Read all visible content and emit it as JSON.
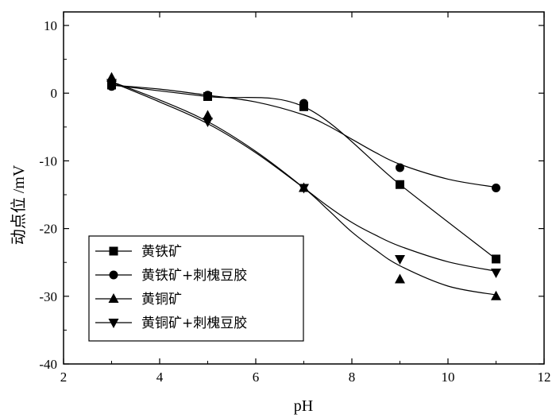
{
  "chart_data": {
    "type": "scatter",
    "xlabel": "pH",
    "ylabel": "动点位 /mV",
    "xlim": [
      2,
      12
    ],
    "ylim": [
      -40,
      12
    ],
    "xticks": [
      2,
      4,
      6,
      8,
      10,
      12
    ],
    "yticks": [
      10,
      0,
      -10,
      -20,
      -30,
      -40
    ],
    "legend_position": "bottom-left",
    "grid": false,
    "series": [
      {
        "name": "黄铁矿",
        "marker": "square",
        "x": [
          3,
          5,
          7,
          9,
          11
        ],
        "y": [
          1.2,
          -0.5,
          -2.0,
          -13.5,
          -24.5
        ],
        "fit": [
          [
            3,
            1.2
          ],
          [
            5,
            -0.5
          ],
          [
            7,
            -2.0
          ],
          [
            9,
            -13.5
          ],
          [
            11,
            -24.5
          ]
        ]
      },
      {
        "name": "黄铁矿+刺槐豆胶",
        "marker": "circle",
        "x": [
          3,
          5,
          7,
          9,
          11
        ],
        "y": [
          1.0,
          -0.3,
          -1.5,
          -11.0,
          -14.0
        ],
        "fit": [
          [
            3,
            1.2
          ],
          [
            4,
            0.6
          ],
          [
            5,
            -0.3
          ],
          [
            6,
            -1.3
          ],
          [
            7,
            -3.2
          ],
          [
            7.5,
            -4.8
          ],
          [
            8,
            -6.8
          ],
          [
            8.5,
            -8.8
          ],
          [
            9,
            -10.5
          ],
          [
            10,
            -12.7
          ],
          [
            11,
            -13.9
          ]
        ]
      },
      {
        "name": "黄铜矿",
        "marker": "triangle-up",
        "x": [
          3,
          5,
          7,
          9,
          11
        ],
        "y": [
          2.3,
          -3.3,
          -14.0,
          -27.5,
          -30.0
        ],
        "fit": [
          [
            3,
            1.7
          ],
          [
            4,
            -1.0
          ],
          [
            5,
            -4.2
          ],
          [
            6,
            -8.6
          ],
          [
            7,
            -14.0
          ],
          [
            7.5,
            -17.2
          ],
          [
            8,
            -20.5
          ],
          [
            8.5,
            -23.2
          ],
          [
            9,
            -25.5
          ],
          [
            10,
            -28.5
          ],
          [
            11,
            -29.8
          ]
        ]
      },
      {
        "name": "黄铜矿+刺槐豆胶",
        "marker": "triangle-down",
        "x": [
          3,
          5,
          7,
          9,
          11
        ],
        "y": [
          1.5,
          -4.2,
          -14.0,
          -24.5,
          -26.5
        ],
        "fit": [
          [
            3,
            1.6
          ],
          [
            4,
            -1.3
          ],
          [
            5,
            -4.5
          ],
          [
            6,
            -8.8
          ],
          [
            7,
            -14.0
          ],
          [
            7.5,
            -16.7
          ],
          [
            8,
            -19.1
          ],
          [
            8.5,
            -21.0
          ],
          [
            9,
            -22.6
          ],
          [
            10,
            -24.9
          ],
          [
            11,
            -26.3
          ]
        ]
      }
    ]
  }
}
